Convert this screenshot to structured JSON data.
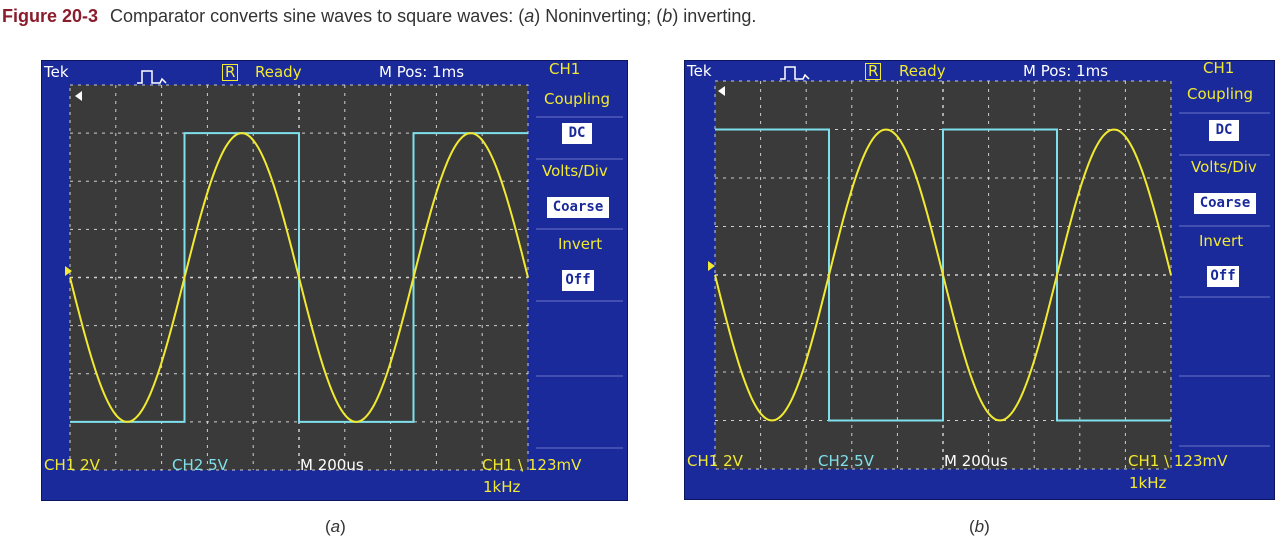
{
  "caption": {
    "figure_number": "Figure 20-3",
    "text_before": "Comparator converts sine waves to square waves: (",
    "a_letter": "a",
    "mid_text": ") Noninverting; (",
    "b_letter": "b",
    "text_after": ") inverting."
  },
  "subcaptions": {
    "a": "a",
    "b": "b"
  },
  "scopes": [
    {
      "brand": "Tek",
      "run_mode": "R",
      "status": "Ready",
      "mpos": "M Pos: 1ms",
      "menu": {
        "channel": "CH1",
        "coupling_label": "Coupling",
        "coupling_value": "DC",
        "volts_div_label": "Volts/Div",
        "volts_div_value": "Coarse",
        "invert_label": "Invert",
        "invert_value": "Off"
      },
      "bottom": {
        "ch1_scale": "CH1  2V",
        "ch2_scale": "CH2  5V",
        "timebase": "M 200us",
        "trigger": "CH1 \\ 123mV",
        "frequency": "1kHz"
      },
      "mode": "noninverting"
    },
    {
      "brand": "Tek",
      "run_mode": "R",
      "status": "Ready",
      "mpos": "M Pos: 1ms",
      "menu": {
        "channel": "CH1",
        "coupling_label": "Coupling",
        "coupling_value": "DC",
        "volts_div_label": "Volts/Div",
        "volts_div_value": "Coarse",
        "invert_label": "Invert",
        "invert_value": "Off"
      },
      "bottom": {
        "ch1_scale": "CH1  2V",
        "ch2_scale": "CH2  5V",
        "timebase": "M 200us",
        "trigger": "CH1 \\ 123mV",
        "frequency": "1kHz"
      },
      "mode": "inverting"
    }
  ],
  "colors": {
    "sine_trace": "#f2ea30",
    "square_trace": "#7fe0ec",
    "screen_bg": "#3a3a3a",
    "bezel": "#1a2a9a"
  }
}
